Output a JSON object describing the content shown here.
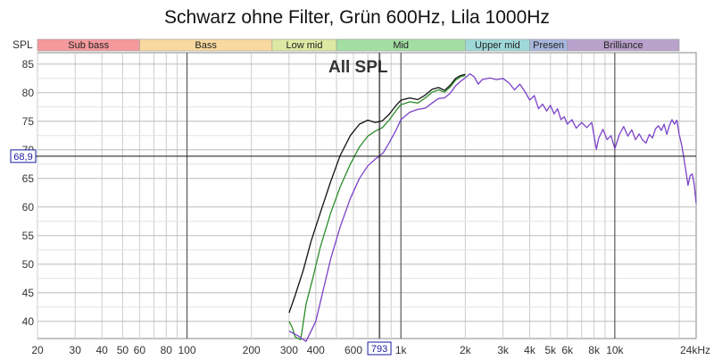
{
  "chart_data": {
    "type": "line",
    "title": "Schwarz ohne Filter, Grün 600Hz, Lila 1000Hz",
    "ylabel": "SPL",
    "xlabel": "",
    "x_scale": "log",
    "xlim": [
      20,
      24000
    ],
    "ylim": [
      37,
      87
    ],
    "grid": true,
    "x_ticks": [
      {
        "value": 20,
        "label": "20"
      },
      {
        "value": 30,
        "label": "30"
      },
      {
        "value": 40,
        "label": "40"
      },
      {
        "value": 50,
        "label": "50"
      },
      {
        "value": 60,
        "label": "60"
      },
      {
        "value": 80,
        "label": "80"
      },
      {
        "value": 100,
        "label": "100"
      },
      {
        "value": 200,
        "label": "200"
      },
      {
        "value": 300,
        "label": "300"
      },
      {
        "value": 400,
        "label": "400"
      },
      {
        "value": 600,
        "label": "600"
      },
      {
        "value": 1000,
        "label": "1k"
      },
      {
        "value": 2000,
        "label": "2k"
      },
      {
        "value": 3000,
        "label": "3k"
      },
      {
        "value": 4000,
        "label": "4k"
      },
      {
        "value": 5000,
        "label": "5k"
      },
      {
        "value": 6000,
        "label": "6k"
      },
      {
        "value": 8000,
        "label": "8k"
      },
      {
        "value": 10000,
        "label": "10k"
      },
      {
        "value": 24000,
        "label": "24kHz"
      }
    ],
    "y_ticks": [
      {
        "value": 40,
        "label": "40"
      },
      {
        "value": 45,
        "label": "45"
      },
      {
        "value": 50,
        "label": "50"
      },
      {
        "value": 55,
        "label": "55"
      },
      {
        "value": 60,
        "label": "60"
      },
      {
        "value": 65,
        "label": "65"
      },
      {
        "value": 70,
        "label": "70"
      },
      {
        "value": 75,
        "label": "75"
      },
      {
        "value": 80,
        "label": "80"
      },
      {
        "value": 85,
        "label": "85"
      }
    ],
    "bands": [
      {
        "label": "Sub bass",
        "from": 20,
        "to": 60,
        "color": "#f4999c"
      },
      {
        "label": "Bass",
        "from": 60,
        "to": 250,
        "color": "#f8d9a0"
      },
      {
        "label": "Low mid",
        "from": 250,
        "to": 500,
        "color": "#dde9a3"
      },
      {
        "label": "Mid",
        "from": 500,
        "to": 2000,
        "color": "#a3dfa3"
      },
      {
        "label": "Upper mid",
        "from": 2000,
        "to": 4000,
        "color": "#9fd8d8"
      },
      {
        "label": "Presen",
        "from": 4000,
        "to": 6000,
        "color": "#a8b6dc"
      },
      {
        "label": "Brilliance",
        "from": 6000,
        "to": 20000,
        "color": "#b9a2cc"
      }
    ],
    "annotation": "All SPL",
    "cursor": {
      "x": 793,
      "x_label": "793",
      "y": 68.9,
      "y_label": "68,9"
    },
    "series": [
      {
        "color": "#111111",
        "x": [
          300,
          320,
          350,
          380,
          420,
          470,
          520,
          580,
          640,
          700,
          760,
          820,
          880,
          950,
          1000,
          1100,
          1200,
          1300,
          1400,
          1500,
          1600,
          1700,
          1800,
          1900,
          2000
        ],
        "y": [
          41.5,
          44.5,
          49,
          54,
          59,
          64.5,
          69,
          72.5,
          74.5,
          75.2,
          74.8,
          75.1,
          76.2,
          77.8,
          78.7,
          79.1,
          78.8,
          79.6,
          80.6,
          80.9,
          80.4,
          81.3,
          82.5,
          83,
          83.2
        ]
      },
      {
        "color": "#2a8c2a",
        "x": [
          300,
          310,
          320,
          340,
          360,
          390,
          420,
          470,
          520,
          580,
          640,
          700,
          760,
          820,
          880,
          950,
          1000,
          1100,
          1200,
          1300,
          1400,
          1500,
          1600,
          1700,
          1800,
          1900,
          2000
        ],
        "y": [
          40,
          39,
          37.3,
          36.8,
          43,
          48,
          53,
          59,
          63.5,
          67.5,
          70.5,
          72.4,
          73.3,
          73.9,
          75.2,
          76.9,
          77.9,
          78.4,
          78.2,
          79.1,
          80.1,
          80.5,
          80.1,
          81,
          82.2,
          82.8,
          83
        ]
      },
      {
        "color": "#7b42c9",
        "x": [
          300,
          330,
          360,
          400,
          430,
          470,
          520,
          580,
          640,
          700,
          760,
          793,
          830,
          880,
          950,
          1000,
          1100,
          1200,
          1300,
          1400,
          1500,
          1600,
          1700,
          1800,
          1900,
          2000,
          2100,
          2200,
          2300,
          2400,
          2600,
          2800,
          3000,
          3200,
          3400,
          3600,
          3800,
          4000,
          4200,
          4400,
          4600,
          4800,
          5000,
          5200,
          5400,
          5600,
          5800,
          6000,
          6300,
          6600,
          7000,
          7400,
          7800,
          8000,
          8200,
          8400,
          8800,
          9200,
          9600,
          10000,
          10500,
          11000,
          11500,
          12000,
          12500,
          13000,
          13500,
          14000,
          14500,
          15000,
          15500,
          16000,
          16500,
          17000,
          17500,
          18000,
          18500,
          19000,
          19500,
          20000,
          20500,
          21000,
          21500,
          22000,
          22500,
          23000,
          23500,
          24000
        ],
        "y": [
          38.3,
          37.5,
          36.5,
          40,
          45,
          51,
          56.5,
          61.5,
          65,
          67.2,
          68.4,
          68.9,
          69.6,
          71.2,
          73.5,
          75.3,
          76.6,
          77.1,
          77.3,
          78.2,
          79,
          79.1,
          79.9,
          81.2,
          82,
          82.6,
          83.3,
          82.8,
          81.5,
          82.3,
          82.6,
          82.3,
          82.5,
          81.7,
          80.5,
          81.5,
          80.2,
          78.7,
          79.5,
          77.2,
          78,
          76.8,
          77.8,
          76.3,
          77.2,
          75.3,
          75.8,
          74.5,
          75.3,
          73.8,
          74.8,
          73.9,
          74.8,
          72.5,
          70.1,
          72,
          73.6,
          71.8,
          72.5,
          70.2,
          72.7,
          74.1,
          72.4,
          73.5,
          71.8,
          72.8,
          71.7,
          71.2,
          72.7,
          72.1,
          73.7,
          74.2,
          73.4,
          74.5,
          72.7,
          74.3,
          75.3,
          74.5,
          75.2,
          72.7,
          71,
          68.7,
          66.2,
          63.8,
          65.5,
          65.8,
          64,
          60.7
        ]
      }
    ]
  }
}
